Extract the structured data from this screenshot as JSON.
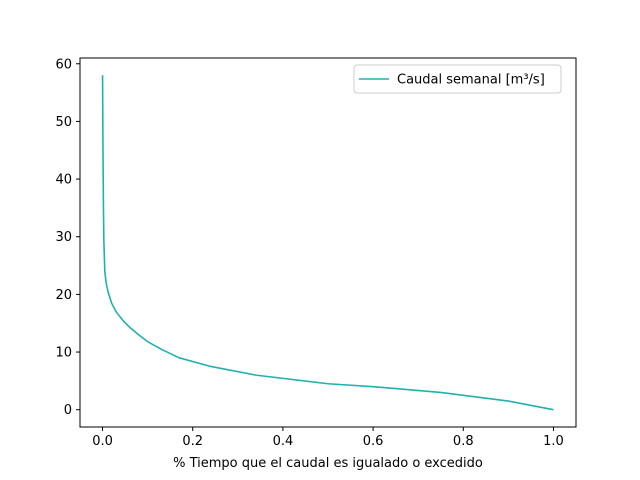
{
  "chart_data": {
    "type": "line",
    "title": "",
    "xlabel": "% Tiempo que el caudal es igualado o excedido",
    "ylabel": "",
    "xlim": [
      -0.05,
      1.05
    ],
    "ylim": [
      -3,
      61
    ],
    "xticks": [
      0.0,
      0.2,
      0.4,
      0.6,
      0.8,
      1.0
    ],
    "xtick_labels": [
      "0.0",
      "0.2",
      "0.4",
      "0.6",
      "0.8",
      "1.0"
    ],
    "yticks": [
      0,
      10,
      20,
      30,
      40,
      50,
      60
    ],
    "ytick_labels": [
      "0",
      "10",
      "20",
      "30",
      "40",
      "50",
      "60"
    ],
    "grid": false,
    "legend_position": "top-right",
    "series": [
      {
        "name": "Caudal semanal [m³/s]",
        "color": "#20b2aa",
        "x": [
          0.0,
          0.001,
          0.002,
          0.003,
          0.005,
          0.008,
          0.012,
          0.02,
          0.03,
          0.045,
          0.06,
          0.08,
          0.1,
          0.13,
          0.17,
          0.24,
          0.34,
          0.5,
          0.6,
          0.75,
          0.9,
          1.0
        ],
        "y": [
          58.0,
          45.0,
          35.0,
          29.0,
          24.0,
          22.0,
          20.5,
          18.5,
          17.0,
          15.5,
          14.3,
          13.0,
          11.8,
          10.5,
          9.0,
          7.5,
          6.0,
          4.5,
          4.0,
          3.0,
          1.5,
          0.0
        ]
      }
    ]
  }
}
